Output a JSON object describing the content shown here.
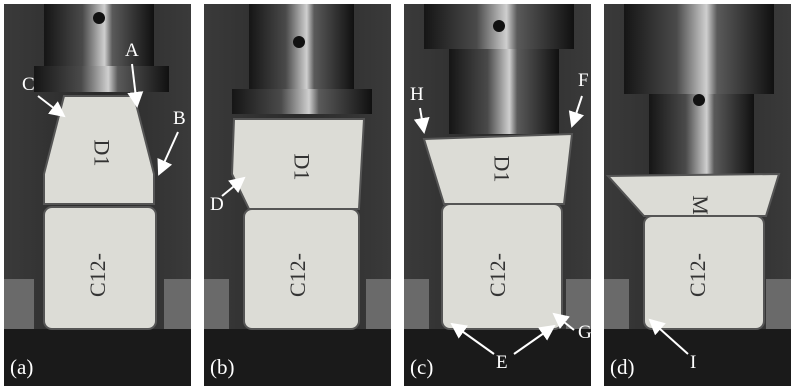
{
  "panels": [
    {
      "id": "a",
      "caption": "(a)"
    },
    {
      "id": "b",
      "caption": "(b)"
    },
    {
      "id": "c",
      "caption": "(c)"
    },
    {
      "id": "d",
      "caption": "(d)"
    }
  ],
  "specimen_labels": {
    "top_upright": "D1",
    "bottom": "C12-",
    "top_crushed": "M"
  },
  "callouts": {
    "A": "A",
    "B": "B",
    "C": "C",
    "D": "D",
    "E": "E",
    "F": "F",
    "G": "G",
    "H": "H",
    "I": "I"
  },
  "colors": {
    "background": "#2b2b2b",
    "specimen": "#dcdcd6",
    "ink": "#333333",
    "annotation": "#ffffff"
  }
}
